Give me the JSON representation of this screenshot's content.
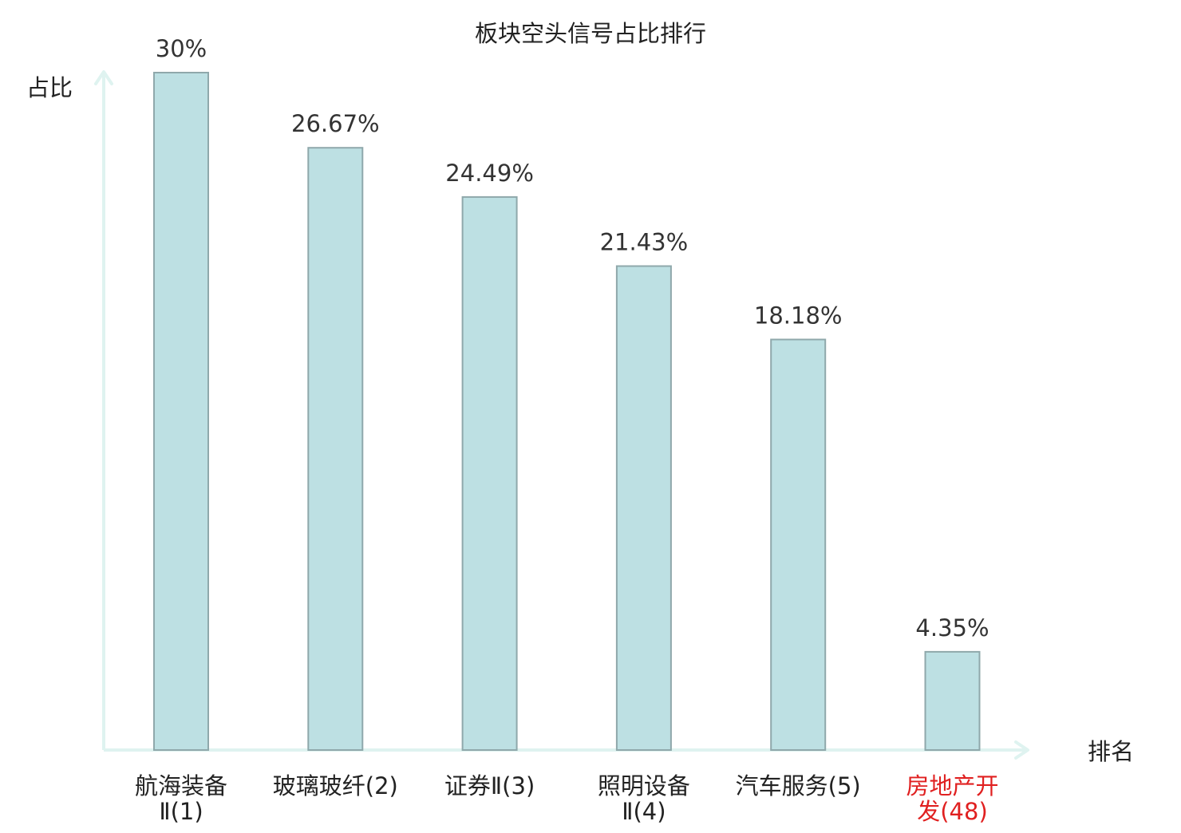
{
  "chart_data": {
    "type": "bar",
    "title": "板块空头信号占比排行",
    "ylabel": "占比",
    "xlabel": "排名",
    "grid": false,
    "legend": "none",
    "ylim": [
      0,
      30
    ],
    "categories": [
      {
        "name_lines": [
          "航海装备",
          "Ⅱ(1)"
        ],
        "highlight": false
      },
      {
        "name_lines": [
          "玻璃玻纤(2)"
        ],
        "highlight": false
      },
      {
        "name_lines": [
          "证券Ⅱ(3)"
        ],
        "highlight": false
      },
      {
        "name_lines": [
          "照明设备",
          "Ⅱ(4)"
        ],
        "highlight": false
      },
      {
        "name_lines": [
          "汽车服务(5)"
        ],
        "highlight": false
      },
      {
        "name_lines": [
          "房地产开",
          "发(48)"
        ],
        "highlight": true
      }
    ],
    "values": [
      30,
      26.67,
      24.49,
      21.43,
      18.18,
      4.35
    ],
    "value_labels": [
      "30%",
      "26.67%",
      "24.49%",
      "21.43%",
      "18.18%",
      "4.35%"
    ]
  },
  "colors": {
    "bar_fill": "#bde0e3",
    "bar_stroke": "#8fa8ab",
    "axis": "#dff3f0",
    "text": "#333333",
    "label_text": "#222222",
    "highlight_text": "#e02020"
  }
}
